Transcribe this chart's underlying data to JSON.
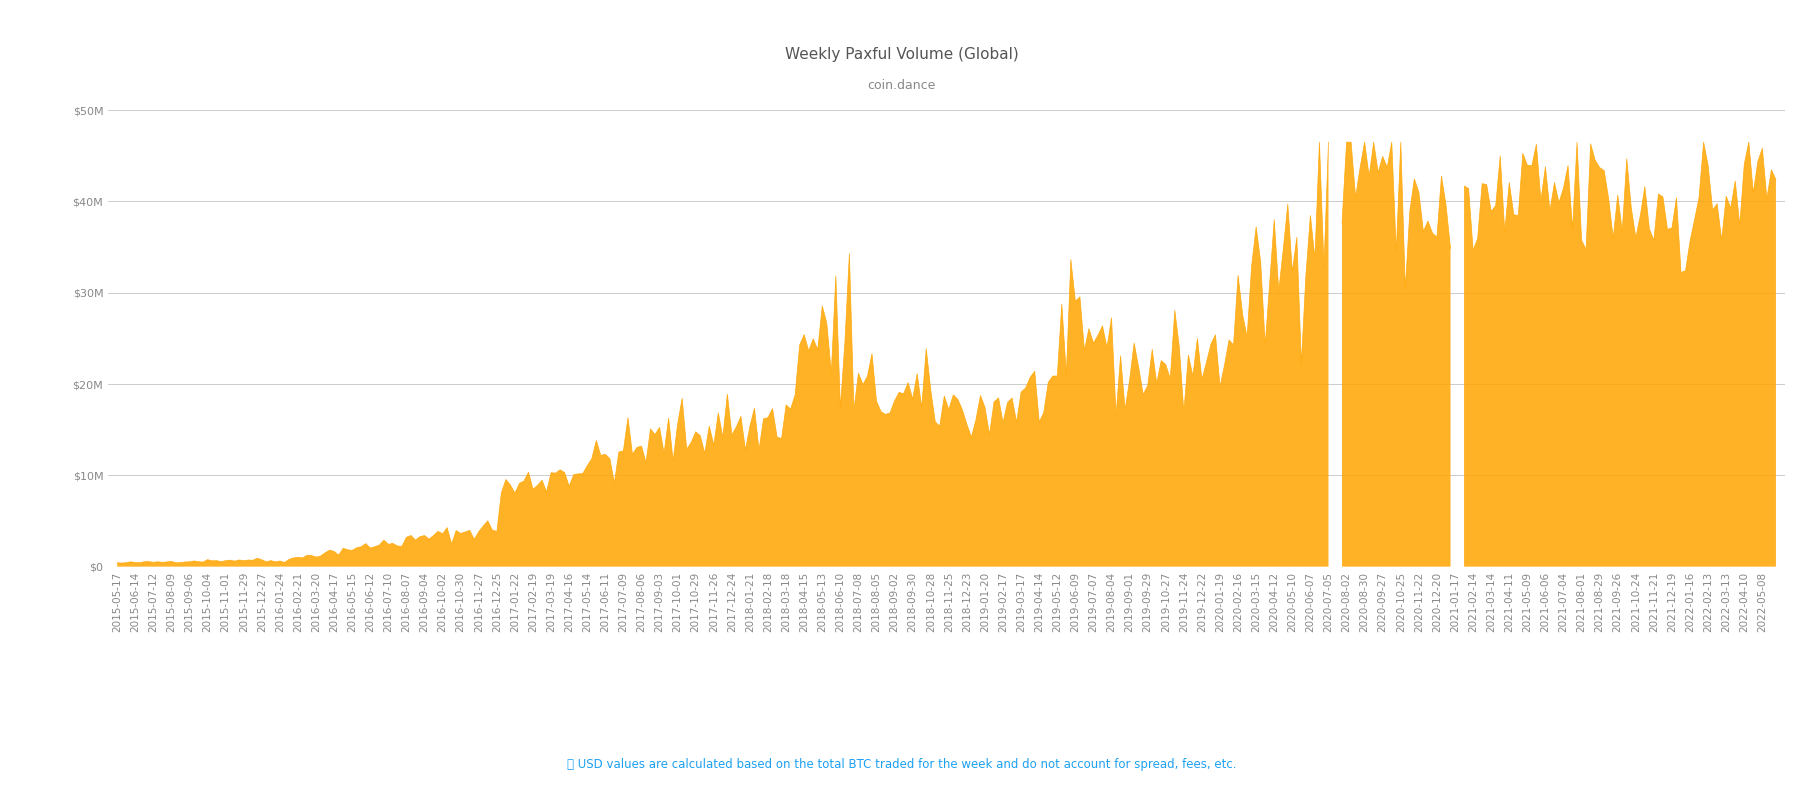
{
  "title": "Weekly Paxful Volume (Global)",
  "subtitle": "coin.dance",
  "fill_color": "#FFA500",
  "fill_alpha": 0.85,
  "line_color": "#FFA500",
  "background_color": "#ffffff",
  "grid_color": "#cccccc",
  "text_color": "#888888",
  "ylabel_ticks": [
    "$0",
    "$10M",
    "$20M",
    "$30M",
    "$40M",
    "$50M"
  ],
  "ylim": [
    0,
    50000000
  ],
  "footnote": "ⓘ USD values are calculated based on the total BTC traded for the week and do not account for spread, fees, etc.",
  "footnote_color": "#1da1f2",
  "title_fontsize": 11,
  "subtitle_fontsize": 9,
  "tick_fontsize": 7.5
}
